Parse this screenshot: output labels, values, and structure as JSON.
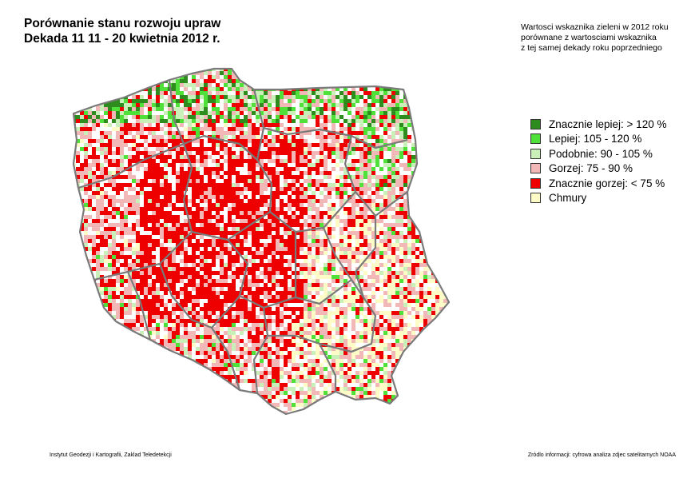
{
  "title": {
    "line1": "Porównanie stanu rozwoju upraw",
    "line2": "Dekada 11  11 - 20 kwietnia 2012 r."
  },
  "note": {
    "line1": "Wartosci wskaznika zieleni w 2012 roku",
    "line2": "porównane z wartosciami wskaznika",
    "line3": "z tej samej dekady roku poprzedniego"
  },
  "legend": {
    "items": [
      {
        "label": "Znacznie lepiej: > 120 %",
        "color": "#2e8b1e"
      },
      {
        "label": "Lepiej: 105 - 120 %",
        "color": "#4fe03a"
      },
      {
        "label": "Podobnie: 90 - 105 %",
        "color": "#c8f0b8"
      },
      {
        "label": "Gorzej: 75 - 90 %",
        "color": "#f2b8b8"
      },
      {
        "label": "Znacznie gorzej: < 75 %",
        "color": "#ee0000"
      },
      {
        "label": "Chmury",
        "color": "#fdfbc6"
      }
    ]
  },
  "footer": {
    "left": "Instytut Geodezji i Kartografii, Zaklad Teledetekcji",
    "right": "Zródlo informacji: cyfrowa analiza zdjec satelitarnych NOAA"
  },
  "map": {
    "border_color": "#7a7a7a"
  }
}
